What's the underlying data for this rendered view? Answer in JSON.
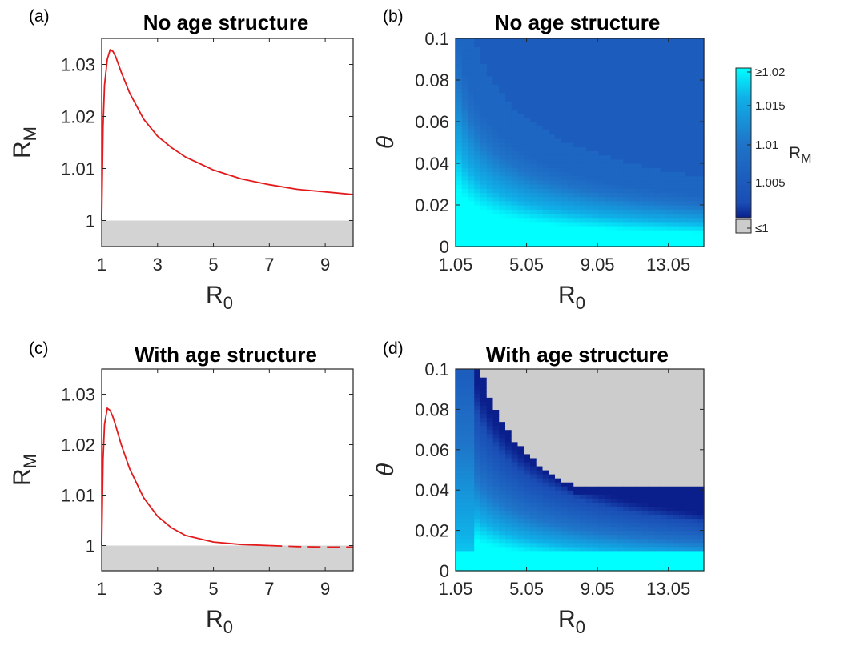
{
  "colorbar": {
    "label": "R",
    "label_sub": "M",
    "ticks": [
      "≥1.02",
      "1.015",
      "1.01",
      "1.005",
      "≤1"
    ],
    "colors": {
      "low": "#0b1f8c",
      "mid": "#1f63c4",
      "high": "#00ffff",
      "gray": "#cccccc"
    }
  },
  "colors": {
    "curve": "#e31a1c",
    "shade": "#d3d3d3",
    "axis": "#262626"
  },
  "chart_data": [
    {
      "panel_label": "(a)",
      "type": "line",
      "title": "No age structure",
      "xlabel": "R",
      "xlabel_sub": "0",
      "ylabel": "R",
      "ylabel_sub": "M",
      "xlim": [
        1,
        10
      ],
      "ylim": [
        0.995,
        1.035
      ],
      "xticks": [
        1,
        3,
        5,
        7,
        9
      ],
      "yticks": [
        1,
        1.01,
        1.02,
        1.03
      ],
      "xtick_labels": [
        "1",
        "3",
        "5",
        "7",
        "9"
      ],
      "ytick_labels": [
        "1",
        "1.01",
        "1.02",
        "1.03"
      ],
      "shaded_below": 1,
      "series": [
        {
          "x": [
            1.0,
            1.05,
            1.1,
            1.2,
            1.3,
            1.4,
            1.5,
            1.7,
            2.0,
            2.5,
            3.0,
            3.5,
            4.0,
            5.0,
            6.0,
            7.0,
            8.0,
            9.0,
            10.0
          ],
          "y": [
            1.0,
            1.018,
            1.026,
            1.031,
            1.0328,
            1.0325,
            1.0315,
            1.0285,
            1.0245,
            1.0195,
            1.0162,
            1.014,
            1.0122,
            1.0097,
            1.008,
            1.0069,
            1.006,
            1.0055,
            1.005
          ]
        }
      ]
    },
    {
      "panel_label": "(b)",
      "type": "heatmap",
      "title": "No age structure",
      "xlabel": "R",
      "xlabel_sub": "0",
      "ylabel": "θ",
      "xlim": [
        1.05,
        15.05
      ],
      "ylim": [
        0,
        0.1
      ],
      "xtick_labels": [
        "1.05",
        "5.05",
        "9.05",
        "13.05"
      ],
      "xticks": [
        1.05,
        5.05,
        9.05,
        13.05
      ],
      "ytick_labels": [
        "0",
        "0.02",
        "0.04",
        "0.06",
        "0.08",
        "0.1"
      ],
      "yticks": [
        0,
        0.02,
        0.04,
        0.06,
        0.08,
        0.1
      ],
      "variant": "no_age",
      "clim": [
        1,
        1.02
      ]
    },
    {
      "panel_label": "(c)",
      "type": "line",
      "title": "With age structure",
      "xlabel": "R",
      "xlabel_sub": "0",
      "ylabel": "R",
      "ylabel_sub": "M",
      "xlim": [
        1,
        10
      ],
      "ylim": [
        0.995,
        1.035
      ],
      "xticks": [
        1,
        3,
        5,
        7,
        9
      ],
      "yticks": [
        1,
        1.01,
        1.02,
        1.03
      ],
      "xtick_labels": [
        "1",
        "3",
        "5",
        "7",
        "9"
      ],
      "ytick_labels": [
        "1",
        "1.01",
        "1.02",
        "1.03"
      ],
      "shaded_below": 1,
      "series": [
        {
          "x": [
            1.0,
            1.05,
            1.1,
            1.2,
            1.3,
            1.4,
            1.5,
            1.7,
            2.0,
            2.5,
            3.0,
            3.5,
            4.0,
            5.0,
            6.0,
            7.0
          ],
          "y": [
            1.0,
            1.017,
            1.024,
            1.0272,
            1.0268,
            1.0255,
            1.0238,
            1.02,
            1.0152,
            1.0095,
            1.0058,
            1.0035,
            1.002,
            1.0007,
            1.0002,
            1.0
          ]
        },
        {
          "style": "dashed",
          "x": [
            7.0,
            8.0,
            9.0,
            10.0
          ],
          "y": [
            1.0,
            0.9998,
            0.9997,
            0.9997
          ]
        }
      ]
    },
    {
      "panel_label": "(d)",
      "type": "heatmap",
      "title": "With age structure",
      "xlabel": "R",
      "xlabel_sub": "0",
      "ylabel": "θ",
      "xlim": [
        1.05,
        15.05
      ],
      "ylim": [
        0,
        0.1
      ],
      "xtick_labels": [
        "1.05",
        "5.05",
        "9.05",
        "13.05"
      ],
      "xticks": [
        1.05,
        5.05,
        9.05,
        13.05
      ],
      "ytick_labels": [
        "0",
        "0.02",
        "0.04",
        "0.06",
        "0.08",
        "0.1"
      ],
      "yticks": [
        0,
        0.02,
        0.04,
        0.06,
        0.08,
        0.1
      ],
      "variant": "with_age",
      "clim": [
        1,
        1.02
      ]
    }
  ]
}
